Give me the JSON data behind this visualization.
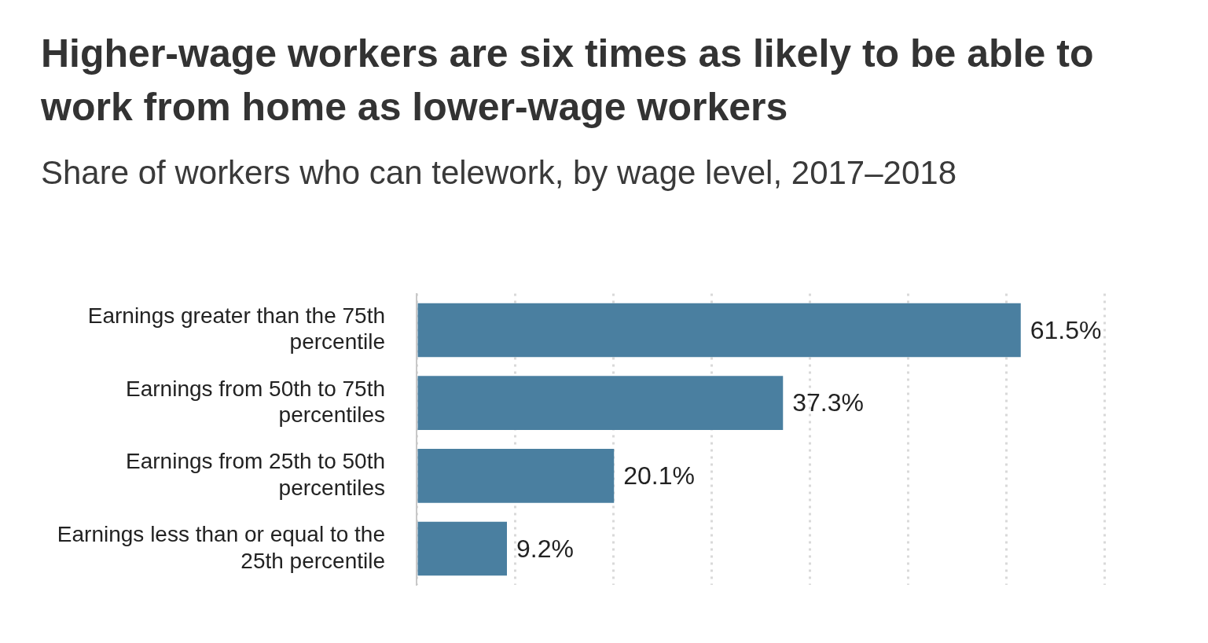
{
  "chart_data": {
    "type": "bar",
    "orientation": "horizontal",
    "title": "Higher-wage workers are six times as likely to be able to work from home as lower-wage workers",
    "subtitle": "Share of workers who can telework, by wage level, 2017–2018",
    "categories": [
      "Earnings greater than the 75th percentile",
      "Earnings from 50th to 75th percentiles",
      "Earnings from 25th to 50th percentiles",
      "Earnings less than or equal to the 25th percentile"
    ],
    "values": [
      61.5,
      37.3,
      20.1,
      9.2
    ],
    "value_labels": [
      "61.5%",
      "37.3%",
      "20.1%",
      "9.2%"
    ],
    "color": "#4a7fa0",
    "xlim": [
      0,
      70
    ],
    "xticks": [
      {
        "value": 0,
        "label": null
      },
      {
        "value": 10,
        "label": null
      },
      {
        "value": 20,
        "label": null
      },
      {
        "value": 30,
        "label": null
      },
      {
        "value": 40,
        "label": null
      },
      {
        "value": 50,
        "label": null
      },
      {
        "value": 60,
        "label": null
      },
      {
        "value": 70,
        "label": null
      }
    ],
    "grid": "x",
    "tick_labels": "y"
  }
}
